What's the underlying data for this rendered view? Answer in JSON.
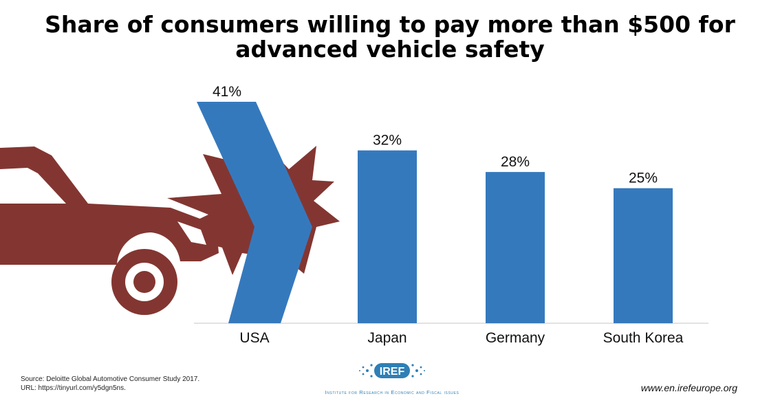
{
  "chart_data": {
    "type": "bar",
    "title": "Share of consumers willing to pay more than $500 for advanced vehicle safety",
    "title_lines": [
      "Share of consumers willing to pay more than $500 for",
      "advanced vehicle safety"
    ],
    "categories": [
      "USA",
      "Japan",
      "Germany",
      "South Korea"
    ],
    "values": [
      41,
      32,
      28,
      25
    ],
    "value_labels": [
      "41%",
      "32%",
      "28%",
      "25%"
    ],
    "unit": "%",
    "xlabel": "",
    "ylabel": "",
    "ylim": [
      0,
      45
    ],
    "grid": false,
    "legend": "none",
    "bar_color": "#3579bd",
    "illustration_color": "#833631"
  },
  "footer": {
    "source_line1": "Source:  Deloitte Global Automotive Consumer Study 2017.",
    "source_line2": "URL: https://tinyurl.com/y5dgn5ns.",
    "logo_text": "IREF",
    "logo_tagline": "Institute for Research in Economic and Fiscal issues",
    "website": "www.en.irefeurope.org"
  }
}
